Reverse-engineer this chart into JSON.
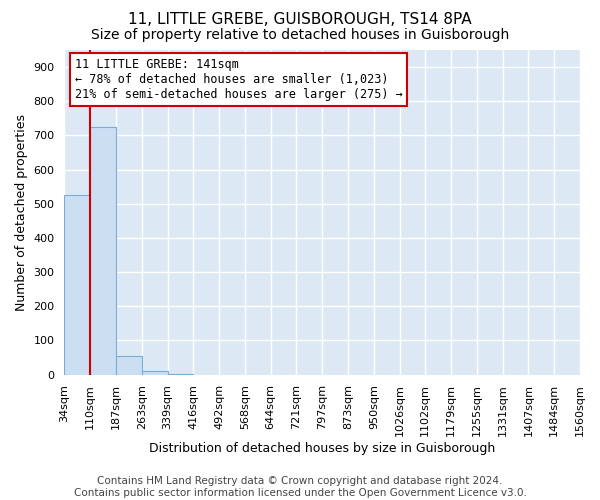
{
  "title_line1": "11, LITTLE GREBE, GUISBOROUGH, TS14 8PA",
  "title_line2": "Size of property relative to detached houses in Guisborough",
  "xlabel": "Distribution of detached houses by size in Guisborough",
  "ylabel": "Number of detached properties",
  "bar_values": [
    525,
    725,
    55,
    10,
    2,
    0,
    0,
    0,
    0,
    0,
    0,
    0,
    0,
    0,
    0,
    0,
    0,
    0,
    0,
    0
  ],
  "bar_labels": [
    "34sqm",
    "110sqm",
    "187sqm",
    "263sqm",
    "339sqm",
    "416sqm",
    "492sqm",
    "568sqm",
    "644sqm",
    "721sqm",
    "797sqm",
    "873sqm",
    "950sqm",
    "1026sqm",
    "1102sqm",
    "1179sqm",
    "1255sqm",
    "1331sqm",
    "1407sqm",
    "1484sqm",
    "1560sqm"
  ],
  "bar_color": "#ccdff2",
  "bar_edge_color": "#7aadd4",
  "vline_color": "#cc0000",
  "annotation_line1": "11 LITTLE GREBE: 141sqm",
  "annotation_line2": "← 78% of detached houses are smaller (1,023)",
  "annotation_line3": "21% of semi-detached houses are larger (275) →",
  "annotation_box_color": "#ffffff",
  "annotation_box_edge_color": "#cc0000",
  "ylim": [
    0,
    950
  ],
  "yticks": [
    0,
    100,
    200,
    300,
    400,
    500,
    600,
    700,
    800,
    900
  ],
  "footnote": "Contains HM Land Registry data © Crown copyright and database right 2024.\nContains public sector information licensed under the Open Government Licence v3.0.",
  "background_color": "#dce9f5",
  "grid_color": "#ffffff",
  "title_fontsize": 11,
  "subtitle_fontsize": 10,
  "axis_label_fontsize": 9,
  "tick_fontsize": 8,
  "annotation_fontsize": 8.5,
  "footnote_fontsize": 7.5
}
